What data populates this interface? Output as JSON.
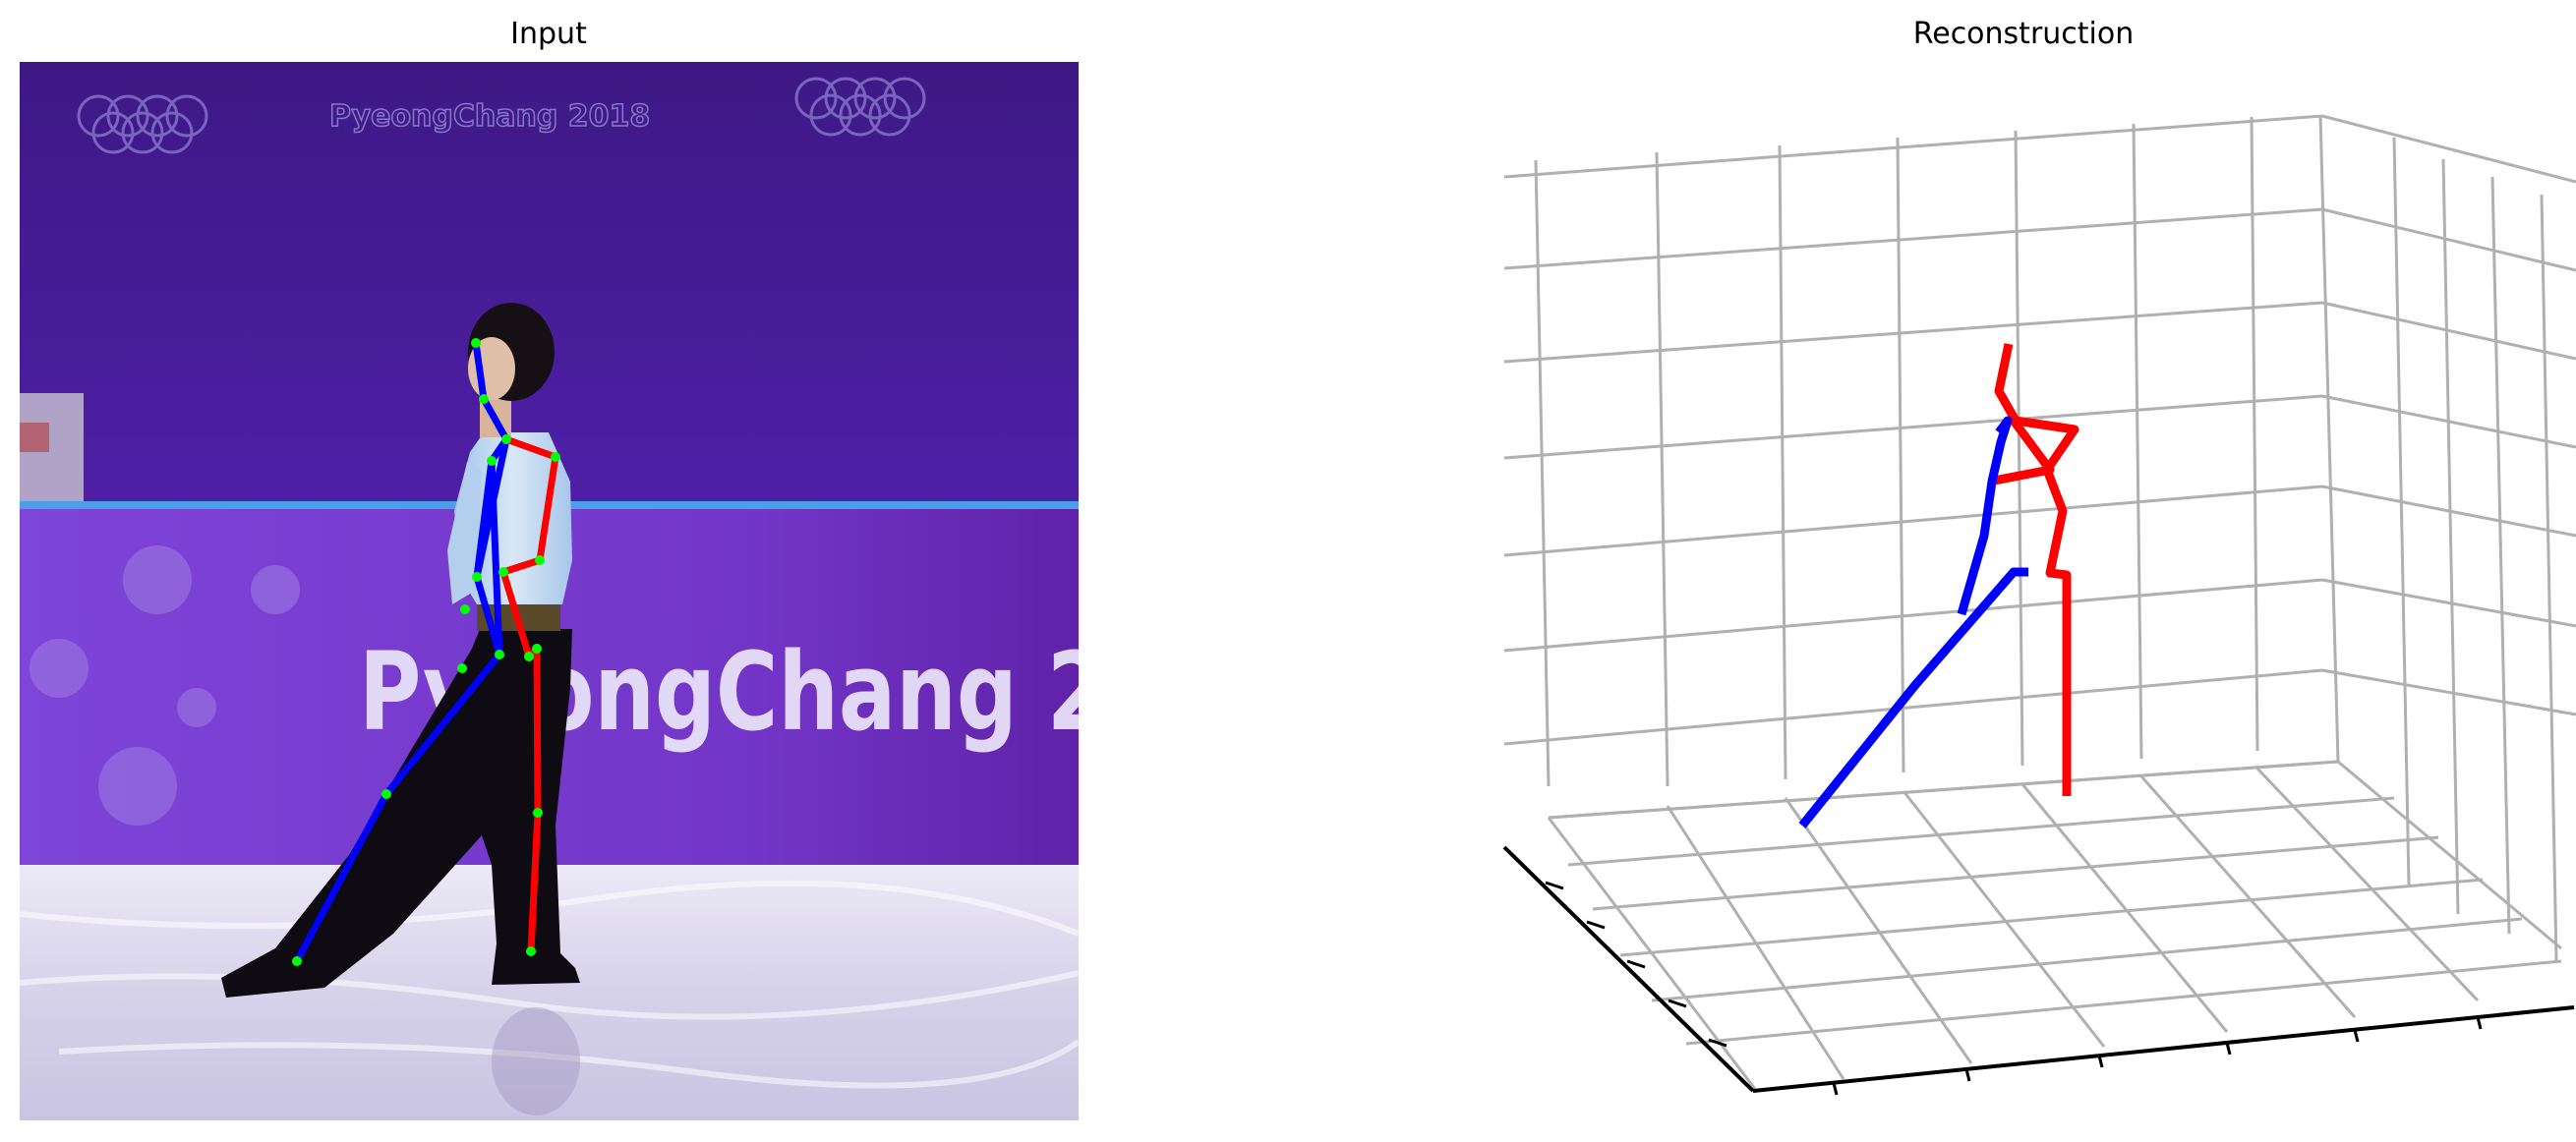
{
  "figure": {
    "left_title": "Input",
    "right_title": "Reconstruction"
  },
  "photo": {
    "banner_text": "PyeongChang 2018",
    "board_text": "PyeongChang 2",
    "colors": {
      "banner": "#4a1c9c",
      "board": "#7a3fd0",
      "rink": "#d9d6ee",
      "skater_pants": "#0e0b10",
      "skater_shirt": "#c7dcf2"
    }
  },
  "skeleton_2d": {
    "colors": {
      "left": "#0000ff",
      "right": "#ff0000",
      "joint": "#00ff00"
    },
    "keypoints": [
      [
        484,
        349
      ],
      [
        492,
        406
      ],
      [
        515,
        447
      ],
      [
        565,
        465
      ],
      [
        549,
        570
      ],
      [
        512,
        582
      ],
      [
        538,
        668
      ],
      [
        473,
        620
      ],
      [
        470,
        680
      ],
      [
        500,
        469
      ],
      [
        485,
        587
      ],
      [
        508,
        666
      ],
      [
        393,
        808
      ],
      [
        302,
        978
      ],
      [
        546,
        660
      ],
      [
        547,
        827
      ],
      [
        540,
        968
      ]
    ],
    "left_limbs": [
      [
        0,
        1
      ],
      [
        1,
        2
      ],
      [
        2,
        10
      ],
      [
        9,
        11
      ],
      [
        11,
        12
      ],
      [
        12,
        13
      ],
      [
        2,
        9
      ],
      [
        9,
        10
      ],
      [
        10,
        11
      ]
    ],
    "right_limbs": [
      [
        2,
        3
      ],
      [
        3,
        4
      ],
      [
        4,
        5
      ],
      [
        5,
        6
      ],
      [
        6,
        14
      ],
      [
        14,
        15
      ],
      [
        15,
        16
      ]
    ]
  },
  "reconstruction_3d": {
    "colors": {
      "left": "#0000ff",
      "right": "#ff0000",
      "grid": "#b0b0b0",
      "axis": "#000000"
    },
    "left_limb_path": [
      [
        2033,
        440
      ],
      [
        2042,
        428
      ],
      [
        2035,
        450
      ],
      [
        2026,
        490
      ],
      [
        2018,
        545
      ],
      [
        1995,
        625
      ]
    ],
    "left_leg_path": [
      [
        2063,
        582
      ],
      [
        2048,
        582
      ],
      [
        1948,
        697
      ],
      [
        1833,
        840
      ]
    ],
    "right_limb_path": [
      [
        2043,
        350
      ],
      [
        2033,
        398
      ],
      [
        2050,
        428
      ],
      [
        2110,
        437
      ],
      [
        2082,
        478
      ],
      [
        2098,
        520
      ],
      [
        2085,
        583
      ],
      [
        2102,
        585
      ],
      [
        2102,
        680
      ],
      [
        2102,
        810
      ]
    ],
    "right_arm_path": [
      [
        2048,
        428
      ],
      [
        2085,
        478
      ],
      [
        2023,
        490
      ]
    ]
  }
}
